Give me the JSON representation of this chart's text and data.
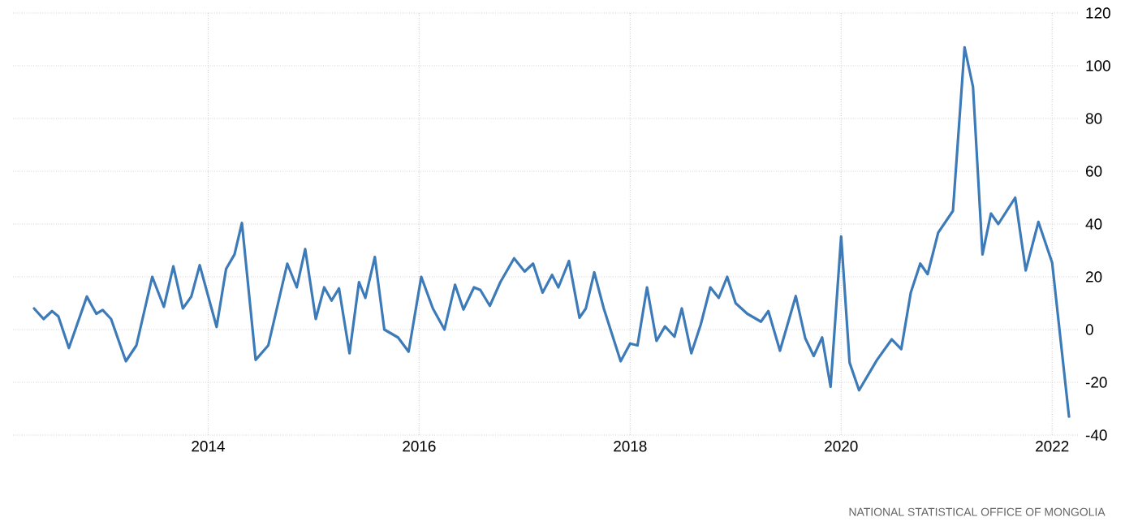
{
  "chart_data": {
    "type": "line",
    "x": [
      2012.35,
      2012.44,
      2012.52,
      2012.58,
      2012.68,
      2012.85,
      2012.94,
      2013.0,
      2013.08,
      2013.22,
      2013.32,
      2013.47,
      2013.58,
      2013.67,
      2013.76,
      2013.84,
      2013.92,
      2014.08,
      2014.17,
      2014.25,
      2014.32,
      2014.45,
      2014.57,
      2014.75,
      2014.84,
      2014.92,
      2015.02,
      2015.1,
      2015.17,
      2015.24,
      2015.34,
      2015.43,
      2015.49,
      2015.58,
      2015.67,
      2015.8,
      2015.9,
      2016.02,
      2016.13,
      2016.24,
      2016.34,
      2016.42,
      2016.52,
      2016.58,
      2016.67,
      2016.77,
      2016.9,
      2017.0,
      2017.08,
      2017.17,
      2017.26,
      2017.32,
      2017.42,
      2017.52,
      2017.58,
      2017.66,
      2017.75,
      2017.91,
      2018.0,
      2018.07,
      2018.16,
      2018.25,
      2018.33,
      2018.42,
      2018.49,
      2018.58,
      2018.67,
      2018.76,
      2018.84,
      2018.92,
      2019.0,
      2019.11,
      2019.24,
      2019.31,
      2019.42,
      2019.57,
      2019.66,
      2019.74,
      2019.82,
      2019.9,
      2020.0,
      2020.08,
      2020.17,
      2020.34,
      2020.48,
      2020.57,
      2020.66,
      2020.75,
      2020.82,
      2020.92,
      2021.06,
      2021.17,
      2021.25,
      2021.34,
      2021.42,
      2021.49,
      2021.65,
      2021.75,
      2021.87,
      2022.0,
      2022.16
    ],
    "series": [
      {
        "color": "#3d7ab8",
        "values": [
          8,
          4,
          7,
          5,
          -7,
          12.5,
          6,
          7.4,
          4,
          -12,
          -6,
          20,
          8.6,
          24,
          8,
          12.5,
          24.4,
          1,
          23,
          28.5,
          40.4,
          -11.5,
          -6,
          25,
          16,
          30.5,
          4,
          16,
          11,
          15.6,
          -9,
          18,
          12,
          27.5,
          0,
          -3,
          -8.4,
          20,
          8,
          0,
          17,
          7.6,
          16,
          15,
          9,
          18,
          27,
          22,
          25,
          14,
          20.7,
          16,
          26,
          4.5,
          8,
          21.7,
          8,
          -12,
          -5.3,
          -6,
          16,
          -4.3,
          1.2,
          -2.7,
          8,
          -9,
          2,
          16,
          12,
          20,
          10,
          6,
          3,
          7,
          -8,
          12.7,
          -3.3,
          -10,
          -3,
          -21.7,
          35.3,
          -12.5,
          -23,
          -11.5,
          -3.7,
          -7.4,
          14,
          25,
          21,
          36.7,
          45,
          107,
          92,
          28.5,
          44,
          40,
          50,
          22.4,
          40.8,
          25.4,
          -33
        ]
      }
    ],
    "xlim": [
      2012.15,
      2022.26
    ],
    "xticks": [
      2014,
      2016,
      2018,
      2020,
      2022
    ],
    "ylim": [
      -40,
      120
    ],
    "yticks": [
      -40,
      -20,
      0,
      20,
      40,
      60,
      80,
      100,
      120
    ],
    "grid": true,
    "line_style": "solid",
    "annotations": [
      "NATIONAL STATISTICAL OFFICE OF MONGOLIA"
    ]
  }
}
